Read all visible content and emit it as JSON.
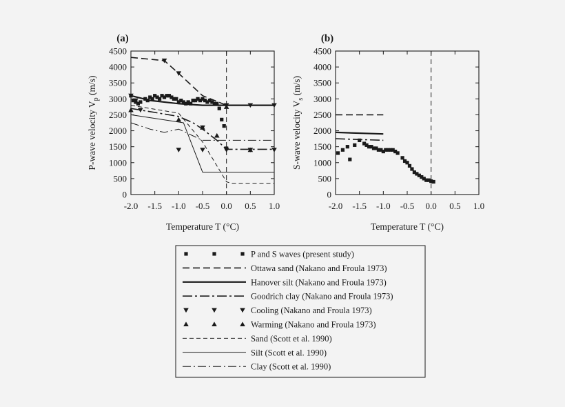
{
  "chart_data": [
    {
      "panel": "(a)",
      "type": "line",
      "xlabel": "Temperature T (°C)",
      "ylabel": "P-wave velocity V",
      "ylabel_sub": "p",
      "ylabel_unit": " (m/s)",
      "xlim": [
        -2.0,
        1.0
      ],
      "ylim": [
        0,
        4500
      ],
      "xticks": [
        "-2.0",
        "-1.5",
        "-1.0",
        "-0.5",
        "0.0",
        "0.5",
        "1.0"
      ],
      "yticks": [
        "0",
        "500",
        "1000",
        "1500",
        "2000",
        "2500",
        "3000",
        "3500",
        "4000",
        "4500"
      ],
      "vline_x": 0,
      "series": [
        {
          "name": "P and S waves (present study)",
          "style": "square",
          "x": [
            -2.0,
            -1.95,
            -1.9,
            -1.85,
            -1.8,
            -1.7,
            -1.65,
            -1.6,
            -1.55,
            -1.5,
            -1.45,
            -1.4,
            -1.35,
            -1.3,
            -1.25,
            -1.2,
            -1.15,
            -1.1,
            -1.05,
            -1.0,
            -0.95,
            -0.9,
            -0.85,
            -0.8,
            -0.75,
            -0.7,
            -0.65,
            -0.6,
            -0.55,
            -0.5,
            -0.45,
            -0.4,
            -0.35,
            -0.3,
            -0.25,
            -0.2,
            -0.15,
            -0.1,
            -0.05,
            0.0
          ],
          "y": [
            3100,
            2950,
            2900,
            2850,
            2900,
            3000,
            2950,
            3050,
            3000,
            3100,
            3050,
            3000,
            3100,
            3050,
            3100,
            3100,
            3050,
            3000,
            3000,
            2900,
            2950,
            2900,
            2850,
            2900,
            2850,
            2950,
            2950,
            3000,
            2950,
            3000,
            2950,
            2900,
            2950,
            2900,
            2850,
            2850,
            2700,
            2350,
            2150,
            1450
          ]
        },
        {
          "name": "Ottawa sand (Nakano and Froula 1973)",
          "style": "dashed-long",
          "x": [
            -2.0,
            -1.3,
            -1.0,
            -0.5,
            0.0,
            1.0
          ],
          "y": [
            4300,
            4200,
            3800,
            3100,
            2800,
            2800
          ]
        },
        {
          "name": "Hanover silt (Nakano and Froula 1973)",
          "style": "solid-thick",
          "x": [
            -2.0,
            -1.6,
            -1.0,
            -0.5,
            0.0,
            1.0
          ],
          "y": [
            3100,
            2950,
            2850,
            2800,
            2800,
            2800
          ]
        },
        {
          "name": "Goodrich clay (Nakano and Froula 1973)",
          "style": "dash-dot",
          "x": [
            -2.0,
            -1.0,
            -0.7,
            -0.5,
            -0.2,
            0.0,
            1.0
          ],
          "y": [
            2700,
            2450,
            2250,
            2050,
            1700,
            1420,
            1420
          ]
        },
        {
          "name": "Cooling (Nakano and Froula 1973)",
          "style": "tri-down",
          "x": [
            -2.0,
            -1.9,
            -1.8,
            -1.3,
            -1.0,
            -0.5,
            0.0,
            0.5,
            1.0
          ],
          "y": [
            3100,
            2950,
            2650,
            4200,
            3800,
            2100,
            2800,
            2800,
            2800
          ]
        },
        {
          "name": "Cooling (Nakano and Froula 1973)",
          "style": "tri-down",
          "x": [
            -1.0,
            -0.5,
            0.0,
            0.5,
            1.0
          ],
          "y": [
            1400,
            1400,
            1400,
            1400,
            1400
          ]
        },
        {
          "name": "Warming (Nakano and Froula 1973)",
          "style": "tri-up",
          "x": [
            -2.0,
            -1.0,
            -0.5,
            -0.2,
            0.0,
            0.5
          ],
          "y": [
            2650,
            2350,
            2100,
            1850,
            2750,
            1400
          ]
        },
        {
          "name": "Sand (Scott et al. 1990)",
          "style": "dashed-short",
          "x": [
            -2.0,
            -1.0,
            -0.5,
            0.0,
            0.1,
            1.0
          ],
          "y": [
            2800,
            2550,
            1650,
            400,
            350,
            350
          ]
        },
        {
          "name": "Silt (Scott et al. 1990)",
          "style": "solid-thin",
          "x": [
            -2.0,
            -0.9,
            -0.5,
            0.0,
            1.0
          ],
          "y": [
            2500,
            2250,
            700,
            700,
            700
          ]
        },
        {
          "name": "Clay (Scott et al. 1990)",
          "style": "dash-dot-fine",
          "x": [
            -2.0,
            -1.6,
            -1.3,
            -1.0,
            -0.5,
            0.0,
            1.0
          ],
          "y": [
            2250,
            2050,
            1950,
            2050,
            1700,
            1700,
            1700
          ]
        }
      ]
    },
    {
      "panel": "(b)",
      "type": "line",
      "xlabel": "Temperature T (°C)",
      "ylabel": "S-wave velocity V",
      "ylabel_sub": "s",
      "ylabel_unit": " (m/s)",
      "xlim": [
        -2.0,
        1.0
      ],
      "ylim": [
        0,
        4500
      ],
      "xticks": [
        "-2.0",
        "-1.5",
        "-1.0",
        "-0.5",
        "0.0",
        "0.5",
        "1.0"
      ],
      "yticks": [
        "0",
        "500",
        "1000",
        "1500",
        "2000",
        "2500",
        "3000",
        "3500",
        "4000",
        "4500"
      ],
      "vline_x": 0,
      "series": [
        {
          "name": "P and S waves (present study)",
          "style": "square",
          "x": [
            -1.95,
            -1.85,
            -1.75,
            -1.7,
            -1.6,
            -1.5,
            -1.4,
            -1.35,
            -1.3,
            -1.25,
            -1.2,
            -1.15,
            -1.1,
            -1.05,
            -1.0,
            -0.95,
            -0.9,
            -0.85,
            -0.8,
            -0.75,
            -0.7,
            -0.6,
            -0.55,
            -0.5,
            -0.45,
            -0.4,
            -0.35,
            -0.3,
            -0.25,
            -0.2,
            -0.15,
            -0.1,
            -0.05,
            0.0,
            0.05
          ],
          "y": [
            1300,
            1400,
            1500,
            1100,
            1550,
            1700,
            1600,
            1550,
            1500,
            1500,
            1450,
            1450,
            1400,
            1400,
            1350,
            1400,
            1400,
            1400,
            1400,
            1350,
            1300,
            1150,
            1050,
            1000,
            900,
            800,
            700,
            650,
            600,
            550,
            500,
            450,
            450,
            420,
            400
          ]
        },
        {
          "name": "Ottawa sand (Nakano and Froula 1973)",
          "style": "dashed-long",
          "x": [
            -2.0,
            -1.0
          ],
          "y": [
            2500,
            2500
          ]
        },
        {
          "name": "Hanover silt (Nakano and Froula 1973)",
          "style": "solid-thick",
          "x": [
            -2.0,
            -1.0
          ],
          "y": [
            1950,
            1900
          ]
        },
        {
          "name": "Goodrich clay (Nakano and Froula 1973)",
          "style": "dash-dot",
          "x": [
            -2.0,
            -1.0
          ],
          "y": [
            1750,
            1700
          ]
        }
      ]
    }
  ],
  "legend": [
    {
      "label": "P and S waves (present study)",
      "style": "square"
    },
    {
      "label": "Ottawa sand (Nakano and Froula 1973)",
      "style": "dashed-long"
    },
    {
      "label": "Hanover silt (Nakano and Froula 1973)",
      "style": "solid-thick"
    },
    {
      "label": "Goodrich clay (Nakano and Froula 1973)",
      "style": "dash-dot"
    },
    {
      "label": "Cooling (Nakano and Froula 1973)",
      "style": "tri-down"
    },
    {
      "label": "Warming (Nakano and Froula 1973)",
      "style": "tri-up"
    },
    {
      "label": "Sand (Scott et al. 1990)",
      "style": "dashed-short"
    },
    {
      "label": "Silt (Scott et al. 1990)",
      "style": "solid-thin"
    },
    {
      "label": "Clay (Scott et al. 1990)",
      "style": "dash-dot-fine"
    }
  ]
}
